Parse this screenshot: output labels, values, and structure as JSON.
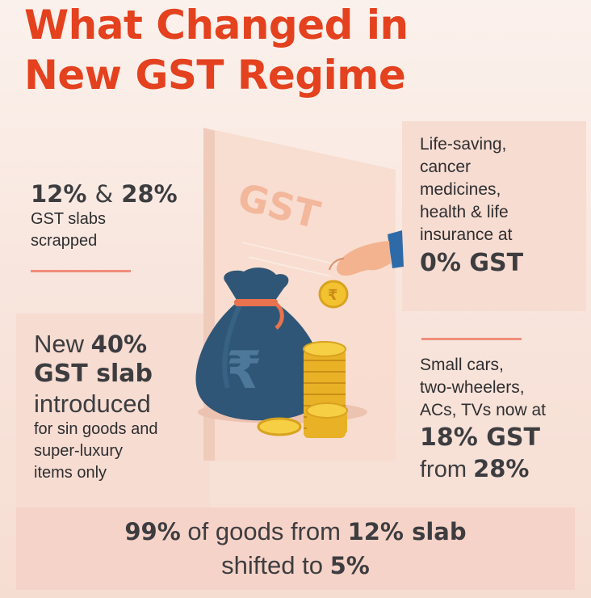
{
  "title": {
    "line1": "What Changed in",
    "line2": "New GST Regime"
  },
  "illustration": {
    "board_label": "GST",
    "coin_symbol": "₹",
    "bag_symbol": "₹"
  },
  "slabs_scrapped": {
    "pct_a": "12%",
    "amp": "&",
    "pct_b": "28%",
    "line1": "GST slabs",
    "line2": "scrapped"
  },
  "zero_gst": {
    "line1": "Life-saving,",
    "line2": "cancer",
    "line3": "medicines,",
    "line4": "health & life",
    "line5": "insurance at",
    "rate": "0% GST"
  },
  "new_slab": {
    "word_new": "New",
    "pct": "40%",
    "slab": "GST slab",
    "introduced": "introduced",
    "line1": "for sin goods and",
    "line2": "super-luxury",
    "line3": "items only"
  },
  "eighteen_gst": {
    "line1": "Small cars,",
    "line2": "two-wheelers,",
    "line3": "ACs, TVs now at",
    "rate": "18% GST",
    "from_word": "from",
    "from_rate": "28%"
  },
  "bottom": {
    "pct": "99%",
    "text1": "of goods from",
    "slab": "12% slab",
    "text2": "shifted to",
    "target": "5%"
  },
  "colors": {
    "title": "#e4411f",
    "text": "#3d3d40",
    "accent_rule": "#f08d79",
    "bag": "#2f5677",
    "coin": "#f2c230"
  }
}
